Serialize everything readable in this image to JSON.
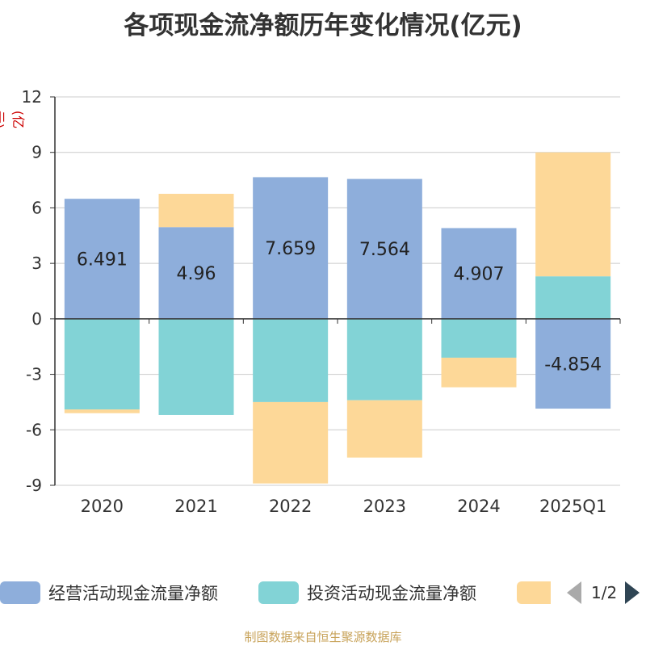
{
  "title": "各项现金流净额历年变化情况(亿元)",
  "unit_label": "(亿元)",
  "source": "制图数据来自恒生聚源数据库",
  "legend": {
    "items": [
      {
        "label": "经营活动现金流量净额",
        "color": "#8eaedb"
      },
      {
        "label": "投资活动现金流量净额",
        "color": "#82d3d6"
      },
      {
        "label": "",
        "color": "#fdd898"
      }
    ],
    "page": "1/2"
  },
  "chart_data": {
    "type": "bar",
    "stacked": true,
    "categories": [
      "2020",
      "2021",
      "2022",
      "2023",
      "2024",
      "2025Q1"
    ],
    "series": [
      {
        "name": "经营活动现金流量净额",
        "color": "#8eaedb",
        "values": [
          6.491,
          4.96,
          7.659,
          7.564,
          4.907,
          -4.854
        ],
        "labels": [
          "6.491",
          "4.96",
          "7.659",
          "7.564",
          "4.907",
          "-4.854"
        ]
      },
      {
        "name": "投资活动现金流量净额",
        "color": "#82d3d6",
        "values": [
          -4.9,
          -5.2,
          -4.5,
          -4.4,
          -2.1,
          2.3
        ]
      },
      {
        "name": "",
        "color": "#fdd898",
        "values": [
          -0.2,
          1.8,
          -4.4,
          -3.1,
          -1.6,
          6.7
        ]
      }
    ],
    "ylim": [
      -9,
      12
    ],
    "yticks": [
      12,
      9,
      6,
      3,
      0,
      -3,
      -6,
      -9
    ],
    "grid": true
  }
}
